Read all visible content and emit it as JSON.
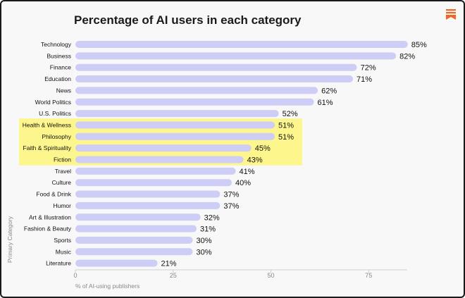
{
  "chart_data": {
    "type": "bar",
    "orientation": "horizontal",
    "title": "Percentage of AI users in each category",
    "xlabel": "% of AI-using publishers",
    "ylabel": "Primary Category",
    "xlim": [
      0,
      85
    ],
    "xticks": [
      0,
      25,
      50,
      75
    ],
    "categories": [
      "Technology",
      "Business",
      "Finance",
      "Education",
      "News",
      "World Politics",
      "U.S. Politics",
      "Health & Wellness",
      "Philosophy",
      "Faith & Spirituality",
      "Fiction",
      "Travel",
      "Culture",
      "Food & Drink",
      "Humor",
      "Art & Illustration",
      "Fashion & Beauty",
      "Sports",
      "Music",
      "Literature"
    ],
    "values": [
      85,
      82,
      72,
      71,
      62,
      61,
      52,
      51,
      51,
      45,
      43,
      41,
      40,
      37,
      37,
      32,
      31,
      30,
      30,
      21
    ],
    "value_labels": [
      "85%",
      "82%",
      "72%",
      "71%",
      "62%",
      "61%",
      "52%",
      "51%",
      "51%",
      "45%",
      "43%",
      "41%",
      "40%",
      "37%",
      "37%",
      "32%",
      "31%",
      "30%",
      "30%",
      "21%"
    ],
    "highlighted_categories": [
      "Health & Wellness",
      "Philosophy",
      "Faith & Spirituality",
      "Fiction"
    ],
    "colors": {
      "bar": "#cdcdf5",
      "highlight": "#fdf68c",
      "axis": "#cfcfcf",
      "background": "#f8f8f8",
      "logo": "#f26522"
    }
  }
}
